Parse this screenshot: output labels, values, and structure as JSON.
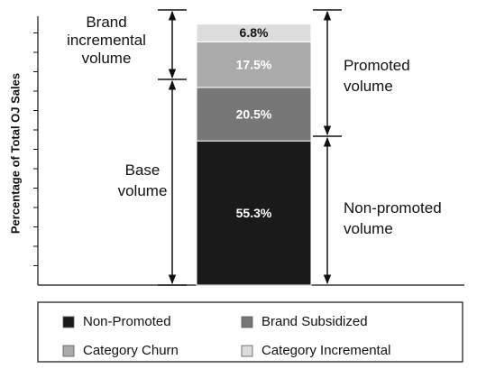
{
  "chart_data": {
    "type": "stacked-bar",
    "y_label": "Percentage of Total OJ Sales",
    "categories": [
      null
    ],
    "series": [
      {
        "name": "Non-Promoted",
        "color": "#1a1a1a",
        "values": [
          55.3
        ],
        "value_labels": [
          "55.3%"
        ]
      },
      {
        "name": "Brand Subsidized",
        "color": "#777777",
        "values": [
          20.5
        ],
        "value_labels": [
          "20.5%"
        ]
      },
      {
        "name": "Category Churn",
        "color": "#ababab",
        "values": [
          17.5
        ],
        "value_labels": [
          "17.5%"
        ]
      },
      {
        "name": "Category Incremental",
        "color": "#dcdcdc",
        "values": [
          6.8
        ],
        "value_labels": [
          "6.8%"
        ]
      }
    ],
    "ylim": [
      0,
      100
    ],
    "annotations": [
      "Brand incremental volume",
      "Base volume",
      "Promoted volume",
      "Non-promoted volume"
    ]
  }
}
